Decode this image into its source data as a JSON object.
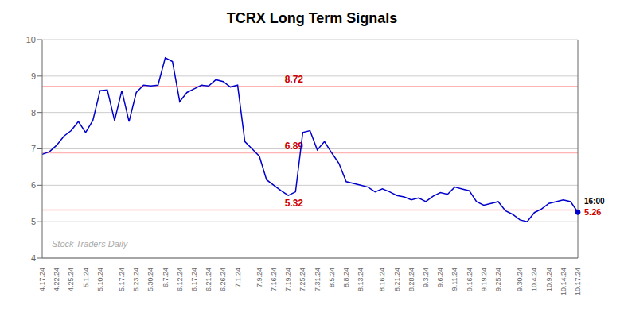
{
  "chart_data": {
    "type": "line",
    "title": "TCRX Long Term Signals",
    "color": "#0000cc",
    "ylim": [
      4,
      10
    ],
    "yticks": [
      4,
      5,
      6,
      7,
      8,
      9,
      10
    ],
    "grid": true,
    "watermark": "Stock Traders Daily",
    "end_label_time": "16:00",
    "end_label": {
      "text": "5.26",
      "color": "#cc0000"
    },
    "hlines": [
      {
        "y": 8.72,
        "label": "8.72",
        "color": "#ffb3b3",
        "label_color": "#cc0000"
      },
      {
        "y": 6.89,
        "label": "6.89",
        "color": "#ffb3b3",
        "label_color": "#cc0000"
      },
      {
        "y": 5.32,
        "label": "5.32",
        "color": "#ffb3b3",
        "label_color": "#cc0000"
      }
    ],
    "categories": [
      "4.17.24",
      null,
      "4.22.24",
      null,
      "4.25.24",
      null,
      "5.1.24",
      null,
      "5.10.24",
      null,
      null,
      "5.17.24",
      null,
      "5.23.24",
      null,
      "5.30.24",
      null,
      "6.7.24",
      null,
      "6.12.24",
      null,
      "6.17.24",
      null,
      "6.21.24",
      null,
      "6.26.24",
      null,
      "7.1.24",
      null,
      null,
      "7.9.24",
      null,
      "7.16.24",
      null,
      "7.19.24",
      null,
      "7.25.24",
      null,
      "7.31.24",
      null,
      "8.5.24",
      null,
      "8.8.24",
      null,
      "8.13.24",
      null,
      null,
      "8.16.24",
      null,
      "8.21.24",
      null,
      "8.28.24",
      null,
      "9.3.24",
      null,
      "9.6.24",
      null,
      "9.11.24",
      null,
      "9.16.24",
      null,
      "9.19.24",
      null,
      "9.25.24",
      null,
      null,
      "9.30.24",
      null,
      "10.4.24",
      null,
      "10.9.24",
      null,
      "10.14.24",
      null,
      "10.17.24"
    ],
    "values": [
      6.85,
      6.92,
      7.1,
      7.35,
      7.5,
      7.75,
      7.45,
      7.78,
      8.6,
      8.62,
      7.78,
      8.6,
      7.75,
      8.55,
      8.75,
      8.73,
      8.75,
      9.5,
      9.4,
      8.3,
      8.55,
      8.65,
      8.75,
      8.73,
      8.9,
      8.85,
      8.7,
      8.75,
      7.2,
      7.0,
      6.8,
      6.15,
      6.0,
      5.85,
      5.72,
      5.82,
      7.45,
      7.5,
      6.97,
      7.2,
      6.89,
      6.6,
      6.1,
      6.05,
      6.0,
      5.95,
      5.82,
      5.9,
      5.82,
      5.72,
      5.68,
      5.6,
      5.65,
      5.55,
      5.7,
      5.8,
      5.75,
      5.95,
      5.9,
      5.85,
      5.55,
      5.45,
      5.5,
      5.55,
      5.3,
      5.2,
      5.05,
      5.0,
      5.25,
      5.35,
      5.5,
      5.55,
      5.6,
      5.55,
      5.26
    ]
  }
}
